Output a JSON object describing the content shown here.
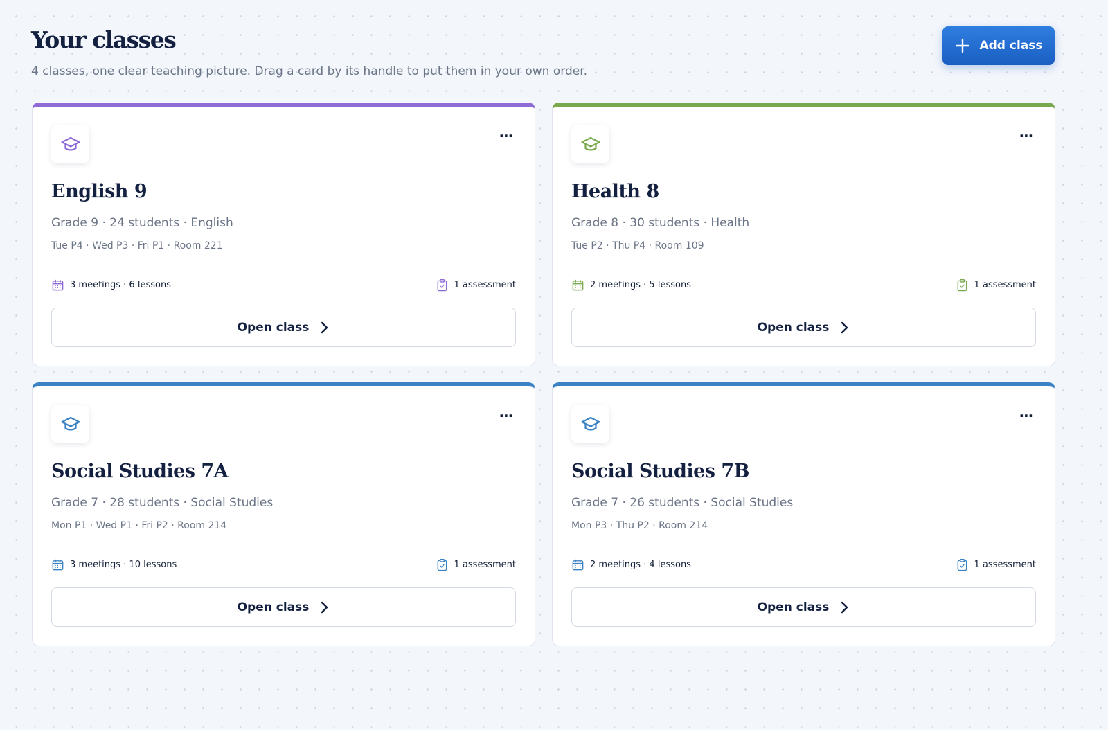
{
  "header": {
    "title": "Your classes",
    "subtitle": "4 classes, one clear teaching picture. Drag a card by its handle to put them in your own order.",
    "add_button": "Add class"
  },
  "cards": [
    {
      "title": "English 9",
      "meta": "Grade 9 · 24 students · English",
      "schedule": "Tue P4 · Wed P3 · Fri P1 · Room 221",
      "stats": "3 meetings · 6 lessons",
      "assessments": "1 assessment",
      "button": "Open class",
      "color": "#8e6bd6"
    },
    {
      "title": "Health 8",
      "meta": "Grade 8 · 30 students · Health",
      "schedule": "Tue P2 · Thu P4 · Room 109",
      "stats": "2 meetings · 5 lessons",
      "assessments": "1 assessment",
      "button": "Open class",
      "color": "#7aa84c"
    },
    {
      "title": "Social Studies 7A",
      "meta": "Grade 7 · 28 students · Social Studies",
      "schedule": "Mon P1 · Wed P1 · Fri P2 · Room 214",
      "stats": "3 meetings · 10 lessons",
      "assessments": "1 assessment",
      "button": "Open class",
      "color": "#3b82c4"
    },
    {
      "title": "Social Studies 7B",
      "meta": "Grade 7 · 26 students · Social Studies",
      "schedule": "Mon P3 · Thu P2 · Room 214",
      "stats": "2 meetings · 4 lessons",
      "assessments": "1 assessment",
      "button": "Open class",
      "color": "#3b82c4"
    }
  ]
}
